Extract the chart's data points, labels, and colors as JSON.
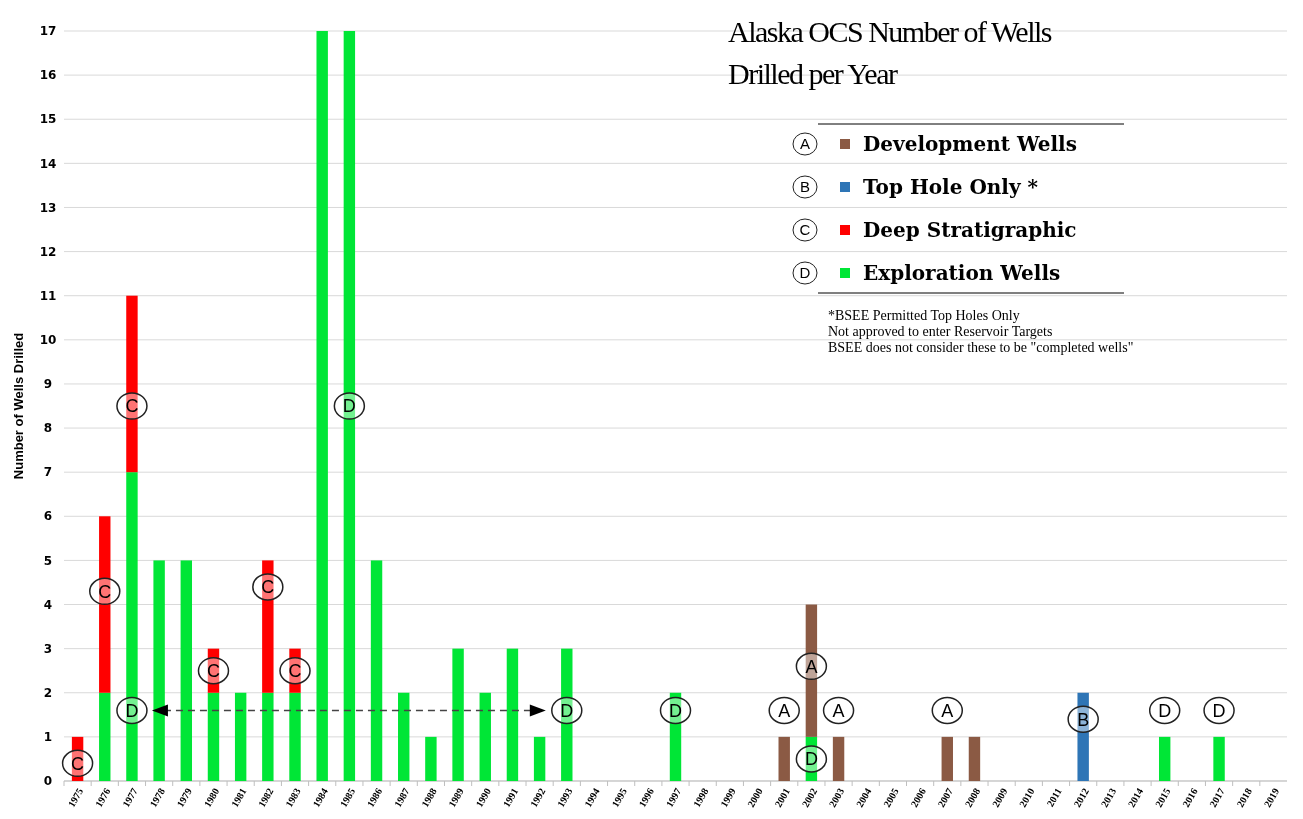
{
  "chart_data": {
    "type": "bar",
    "title": "Alaska OCS Number of Wells Drilled per Year",
    "ylabel": "Number of Wells Drilled",
    "stacked": true,
    "grid": "y",
    "legend": "top right",
    "categories": [
      "1975",
      "1976",
      "1977",
      "1978",
      "1979",
      "1980",
      "1981",
      "1982",
      "1983",
      "1984",
      "1985",
      "1986",
      "1987",
      "1988",
      "1989",
      "1990",
      "1991",
      "1992",
      "1993",
      "1994",
      "1995",
      "1996",
      "1997",
      "1998",
      "1999",
      "2000",
      "2001",
      "2002",
      "2003",
      "2004",
      "2005",
      "2006",
      "2007",
      "2008",
      "2009",
      "2010",
      "2011",
      "2012",
      "2013",
      "2014",
      "2015",
      "2016",
      "2017",
      "2018",
      "2019"
    ],
    "series": [
      {
        "name": "Exploration Wells",
        "color": "#00e636",
        "values": [
          null,
          2,
          7,
          5,
          5,
          2,
          2,
          2,
          2,
          17,
          17,
          5,
          2,
          1,
          3,
          2,
          3,
          1,
          3,
          null,
          null,
          null,
          2,
          null,
          null,
          null,
          null,
          1,
          null,
          null,
          null,
          null,
          null,
          null,
          null,
          null,
          null,
          null,
          null,
          null,
          1,
          null,
          1,
          null,
          null
        ]
      },
      {
        "name": "Deep Stratigraphic",
        "color": "#ff0000",
        "values": [
          1,
          4,
          4,
          null,
          null,
          1,
          null,
          3,
          1,
          null,
          null,
          null,
          null,
          null,
          null,
          null,
          null,
          null,
          null,
          null,
          null,
          null,
          null,
          null,
          null,
          null,
          null,
          null,
          null,
          null,
          null,
          null,
          null,
          null,
          null,
          null,
          null,
          null,
          null,
          null,
          null,
          null,
          null,
          null,
          null
        ]
      },
      {
        "name": "Top Hole Only *",
        "color": "#2e75b6",
        "values": [
          null,
          null,
          null,
          null,
          null,
          null,
          null,
          null,
          null,
          null,
          null,
          null,
          null,
          null,
          null,
          null,
          null,
          null,
          null,
          null,
          null,
          null,
          null,
          null,
          null,
          null,
          null,
          null,
          null,
          null,
          null,
          null,
          null,
          null,
          null,
          null,
          null,
          2,
          null,
          null,
          null,
          null,
          null,
          null,
          null
        ]
      },
      {
        "name": "Development Wells",
        "color": "#8b5a44",
        "values": [
          null,
          null,
          null,
          null,
          null,
          null,
          null,
          null,
          null,
          null,
          null,
          null,
          null,
          null,
          null,
          null,
          null,
          null,
          null,
          null,
          null,
          null,
          null,
          null,
          null,
          null,
          1,
          3,
          1,
          null,
          null,
          null,
          1,
          1,
          null,
          null,
          null,
          null,
          null,
          null,
          null,
          null,
          null,
          null,
          null
        ]
      }
    ],
    "ylim": [
      0,
      17
    ],
    "yticks": [
      0,
      1,
      2,
      3,
      4,
      5,
      6,
      7,
      8,
      9,
      10,
      11,
      12,
      13,
      14,
      15,
      16,
      17
    ],
    "annotations": [
      "D",
      "C",
      "B",
      "A",
      "*BSEE Permitted Top Holes Only",
      "Not approved to enter Reservoir Targets",
      "BSEE does not consider these to be \"completed wells\"",
      {
        "text": "C",
        "x": "1975",
        "y": 0.4
      },
      {
        "text": "C",
        "x": "1976",
        "y": 4.3
      },
      {
        "text": "D",
        "x": "1977",
        "y": 1.6
      },
      {
        "text": "C",
        "x": "1977",
        "y": 8.5
      },
      {
        "text": "C",
        "x": "1980",
        "y": 2.5
      },
      {
        "text": "C",
        "x": "1982",
        "y": 4.4
      },
      {
        "text": "C",
        "x": "1983",
        "y": 2.5
      },
      {
        "text": "D",
        "x": "1985",
        "y": 8.5
      },
      {
        "text": "D",
        "x": "1993",
        "y": 1.6
      },
      {
        "text": "D",
        "x": "1997",
        "y": 1.6
      },
      {
        "text": "A",
        "x": "2001",
        "y": 1.6
      },
      {
        "text": "A",
        "x": "2002",
        "y": 2.6
      },
      {
        "text": "D",
        "x": "2002",
        "y": 0.5
      },
      {
        "text": "A",
        "x": "2003",
        "y": 1.6
      },
      {
        "text": "A",
        "x": "2007",
        "y": 1.6
      },
      {
        "text": "B",
        "x": "2012",
        "y": 1.4
      },
      {
        "text": "D",
        "x": "2015",
        "y": 1.6
      },
      {
        "text": "D",
        "x": "2017",
        "y": 1.6
      }
    ]
  }
}
